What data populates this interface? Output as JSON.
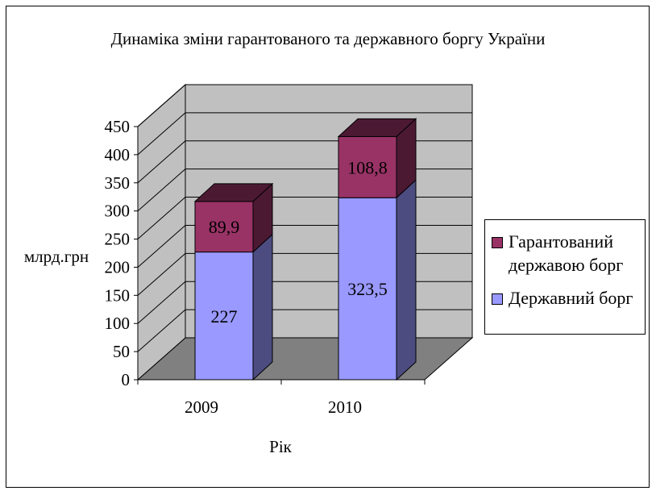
{
  "chart_data": {
    "type": "bar",
    "stacked": true,
    "three_d": true,
    "title": "Динаміка зміни гарантованого та державного боргу України",
    "ylabel": "млрд.грн",
    "xlabel": "Рік",
    "categories": [
      "2009",
      "2010"
    ],
    "ylim": [
      0,
      450
    ],
    "yticks": [
      "0",
      "50",
      "100",
      "150",
      "200",
      "250",
      "300",
      "350",
      "400",
      "450"
    ],
    "series": [
      {
        "name": "Державний борг",
        "values": [
          227,
          323.5
        ],
        "labels": [
          "227",
          "323,5"
        ],
        "color": "#9999ff"
      },
      {
        "name": "Гарантований державою борг",
        "values": [
          89.9,
          108.8
        ],
        "labels": [
          "89,9",
          "108,8"
        ],
        "color": "#993366"
      }
    ],
    "legend_position": "right",
    "grid": true,
    "colors": {
      "wall": "#c0c0c0",
      "floor": "#808080"
    }
  }
}
